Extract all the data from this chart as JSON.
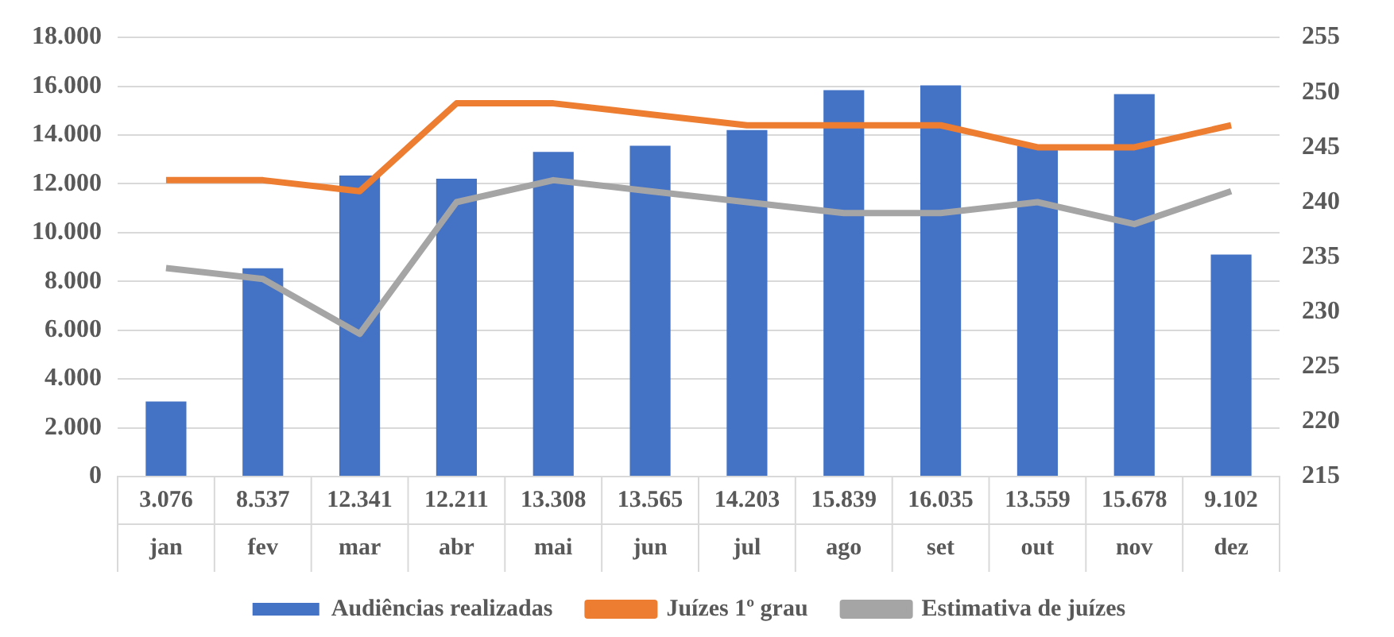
{
  "chart_data": {
    "type": "bar",
    "categories": [
      "jan",
      "fev",
      "mar",
      "abr",
      "mai",
      "jun",
      "jul",
      "ago",
      "set",
      "out",
      "nov",
      "dez"
    ],
    "series": [
      {
        "name": "Audiências realizadas",
        "color": "#4472c4",
        "values": [
          3076,
          8537,
          12341,
          12211,
          13308,
          13565,
          14203,
          15839,
          16035,
          13559,
          15678,
          9102
        ],
        "value_labels": [
          "3.076",
          "8.537",
          "12.341",
          "12.211",
          "13.308",
          "13.565",
          "14.203",
          "15.839",
          "16.035",
          "13.559",
          "15.678",
          "9.102"
        ]
      },
      {
        "name": "Juízes 1º grau",
        "type": "line",
        "axis": "y2",
        "color": "#ed7d31",
        "values": [
          242,
          242,
          241,
          249,
          249,
          248,
          247,
          247,
          247,
          245,
          245,
          247
        ]
      },
      {
        "name": "Estimativa de juízes",
        "type": "line",
        "axis": "y2",
        "color": "#a5a5a5",
        "values": [
          234,
          233,
          228,
          240,
          242,
          241,
          240,
          239,
          239,
          240,
          238,
          241
        ]
      }
    ],
    "ylim": [
      0,
      18000
    ],
    "yticks": [
      {
        "value": 0,
        "label": "0"
      },
      {
        "value": 2000,
        "label": "2.000"
      },
      {
        "value": 4000,
        "label": "4.000"
      },
      {
        "value": 6000,
        "label": "6.000"
      },
      {
        "value": 8000,
        "label": "8.000"
      },
      {
        "value": 10000,
        "label": "10.000"
      },
      {
        "value": 12000,
        "label": "12.000"
      },
      {
        "value": 14000,
        "label": "14.000"
      },
      {
        "value": 16000,
        "label": "16.000"
      },
      {
        "value": 18000,
        "label": "18.000"
      }
    ],
    "y2lim": [
      215,
      255
    ],
    "y2ticks": [
      215,
      220,
      225,
      230,
      235,
      240,
      245,
      250,
      255
    ],
    "grid": "y",
    "legend": "bottom",
    "marker": "none",
    "line_style": "solid"
  }
}
